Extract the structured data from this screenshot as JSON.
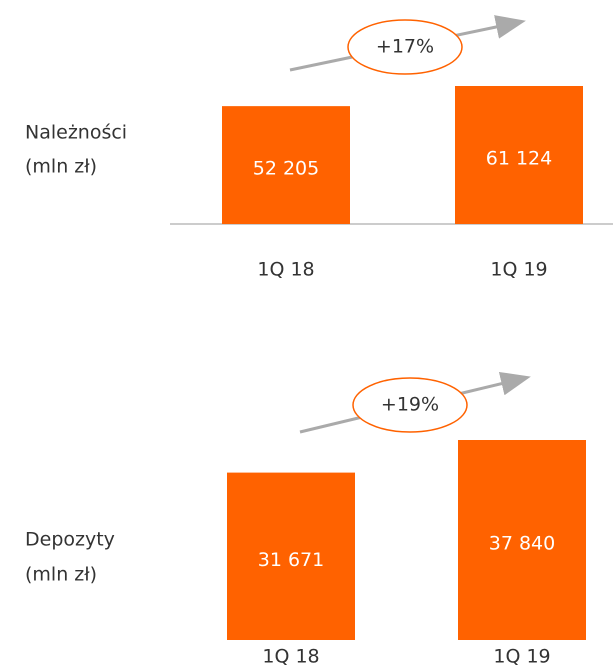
{
  "chart_data": [
    {
      "type": "bar",
      "y_label": [
        "Należności",
        "(mln zł)"
      ],
      "categories": [
        "1Q 18",
        "1Q 19"
      ],
      "values": [
        52205,
        61124
      ],
      "value_labels": [
        "52 205",
        "61 124"
      ],
      "color": "#ff6200",
      "annotation": "+17%"
    },
    {
      "type": "bar",
      "y_label": [
        "Depozyty",
        "(mln zł)"
      ],
      "categories": [
        "1Q 18",
        "1Q 19"
      ],
      "values": [
        31671,
        37840
      ],
      "value_labels": [
        "31 671",
        "37 840"
      ],
      "color": "#ff6200",
      "annotation": "+19%"
    }
  ]
}
